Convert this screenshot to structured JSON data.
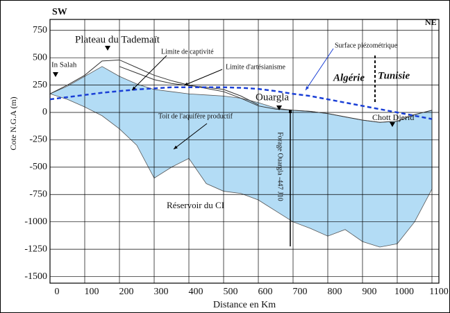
{
  "chart_data": {
    "type": "area-section",
    "xlabel": "Distance en Km",
    "ylabel": "Cote N.G.A (m)",
    "xlim": [
      0,
      1120
    ],
    "ylim": [
      -1560,
      850
    ],
    "xticks": [
      0,
      100,
      200,
      300,
      400,
      500,
      600,
      700,
      800,
      900,
      1000,
      1100
    ],
    "yticks": [
      750,
      500,
      250,
      0,
      -250,
      -500,
      -750,
      -1000,
      -1250,
      -1500
    ],
    "grid": true,
    "x": [
      0,
      50,
      100,
      150,
      200,
      250,
      300,
      350,
      400,
      450,
      500,
      550,
      600,
      650,
      700,
      750,
      800,
      850,
      900,
      950,
      1000,
      1050,
      1100
    ],
    "aquifer": {
      "color": "#b3dcf5",
      "top": [
        170,
        240,
        330,
        420,
        330,
        260,
        210,
        190,
        170,
        160,
        150,
        130,
        90,
        40,
        20,
        10,
        -10,
        -40,
        -70,
        -90,
        -80,
        -20,
        20
      ],
      "bottom": [
        170,
        120,
        50,
        -30,
        -150,
        -300,
        -600,
        -500,
        -420,
        -650,
        -720,
        -740,
        -800,
        -900,
        -1000,
        -1060,
        -1130,
        -1070,
        -1180,
        -1230,
        -1200,
        -1000,
        -700
      ]
    },
    "lines": [
      {
        "color": "#333333",
        "dash": false,
        "values": [
          170,
          250,
          340,
          470,
          480,
          410,
          340,
          290,
          250,
          220,
          190,
          130,
          60,
          30,
          20,
          10,
          -10,
          -40,
          -70,
          -90,
          -80,
          -20,
          20
        ]
      },
      {
        "color": "#333333",
        "dash": false,
        "values": [
          null,
          null,
          null,
          null,
          420,
          360,
          300,
          265,
          245,
          230,
          210,
          150,
          70,
          null,
          null,
          null,
          null,
          null,
          null,
          null,
          null,
          null,
          null
        ]
      },
      {
        "color": "#1a3fd6",
        "dash": true,
        "values": [
          120,
          140,
          160,
          180,
          195,
          210,
          220,
          230,
          230,
          230,
          230,
          225,
          215,
          195,
          170,
          150,
          120,
          90,
          60,
          30,
          0,
          -30,
          -60
        ]
      }
    ],
    "annotations": {
      "sw": "SW",
      "ne": "NE",
      "plateau": "Plateau du Tademaït",
      "insalah": "In Salah",
      "captivite": "Limite de captivité",
      "artesianisme": "Limite d'artésianisme",
      "piezo": "Surface piézométrique",
      "algerie": "Algérie",
      "tunisie": "Tunisie",
      "ouargla": "Ouargla",
      "toit": "Toit de l'aquifère productif",
      "chott": "Chott Djerid",
      "forage": "Forage Ouargla -447 J10",
      "reservoir": "Réservoir du CI"
    }
  }
}
